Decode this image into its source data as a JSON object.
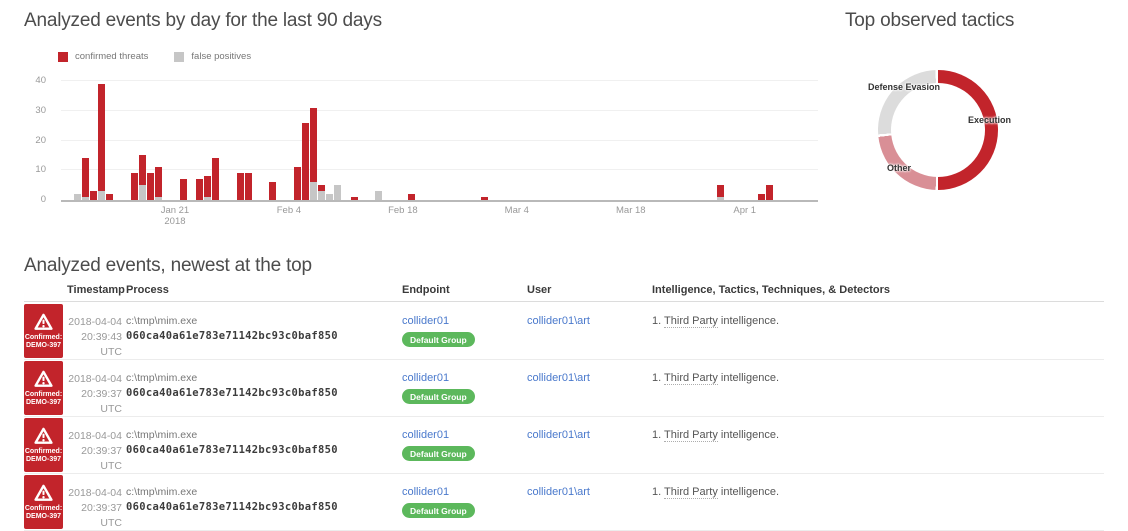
{
  "titles": {
    "bar_chart": "Analyzed events by day for the last 90 days",
    "donut": "Top observed tactics",
    "table": "Analyzed events, newest at the top"
  },
  "chart_data": [
    {
      "type": "bar",
      "title": "Analyzed events by day for the last 90 days",
      "stacked": true,
      "grid": true,
      "legend_position": "top-left",
      "ylim": [
        0,
        40
      ],
      "yticks": [
        0,
        10,
        20,
        30,
        40
      ],
      "x_days_total": 93,
      "xticks": [
        {
          "label": "Jan 21",
          "sublabel": "2018",
          "day": 14
        },
        {
          "label": "Feb 4",
          "day": 28
        },
        {
          "label": "Feb 18",
          "day": 42
        },
        {
          "label": "Mar 4",
          "day": 56
        },
        {
          "label": "Mar 18",
          "day": 70
        },
        {
          "label": "Apr 1",
          "day": 84
        }
      ],
      "series": [
        {
          "name": "confirmed threats",
          "color": "#c2242b"
        },
        {
          "name": "false positives",
          "color": "#c6c6c6"
        }
      ],
      "points": [
        {
          "date": "Jan 9",
          "day": 2,
          "confirmed": 0,
          "false_positives": 2
        },
        {
          "date": "Jan 10",
          "day": 3,
          "confirmed": 13,
          "false_positives": 1
        },
        {
          "date": "Jan 11",
          "day": 4,
          "confirmed": 3,
          "false_positives": 0
        },
        {
          "date": "Jan 12",
          "day": 5,
          "confirmed": 36,
          "false_positives": 3
        },
        {
          "date": "Jan 13",
          "day": 6,
          "confirmed": 2,
          "false_positives": 0
        },
        {
          "date": "Jan 16",
          "day": 9,
          "confirmed": 9,
          "false_positives": 0
        },
        {
          "date": "Jan 17",
          "day": 10,
          "confirmed": 10,
          "false_positives": 5
        },
        {
          "date": "Jan 18",
          "day": 11,
          "confirmed": 9,
          "false_positives": 0
        },
        {
          "date": "Jan 19",
          "day": 12,
          "confirmed": 10,
          "false_positives": 1
        },
        {
          "date": "Jan 22",
          "day": 15,
          "confirmed": 7,
          "false_positives": 0
        },
        {
          "date": "Jan 24",
          "day": 17,
          "confirmed": 7,
          "false_positives": 0
        },
        {
          "date": "Jan 25",
          "day": 18,
          "confirmed": 7,
          "false_positives": 1
        },
        {
          "date": "Jan 26",
          "day": 19,
          "confirmed": 14,
          "false_positives": 0
        },
        {
          "date": "Jan 29",
          "day": 22,
          "confirmed": 9,
          "false_positives": 0
        },
        {
          "date": "Jan 30",
          "day": 23,
          "confirmed": 9,
          "false_positives": 0
        },
        {
          "date": "Feb 2",
          "day": 26,
          "confirmed": 6,
          "false_positives": 0
        },
        {
          "date": "Feb 5",
          "day": 29,
          "confirmed": 11,
          "false_positives": 0
        },
        {
          "date": "Feb 6",
          "day": 30,
          "confirmed": 26,
          "false_positives": 0
        },
        {
          "date": "Feb 7",
          "day": 31,
          "confirmed": 25,
          "false_positives": 6
        },
        {
          "date": "Feb 8",
          "day": 32,
          "confirmed": 2,
          "false_positives": 3
        },
        {
          "date": "Feb 9",
          "day": 33,
          "confirmed": 0,
          "false_positives": 2
        },
        {
          "date": "Feb 10",
          "day": 34,
          "confirmed": 0,
          "false_positives": 5
        },
        {
          "date": "Feb 12",
          "day": 36,
          "confirmed": 1,
          "false_positives": 0
        },
        {
          "date": "Feb 15",
          "day": 39,
          "confirmed": 0,
          "false_positives": 3
        },
        {
          "date": "Feb 19",
          "day": 43,
          "confirmed": 2,
          "false_positives": 0
        },
        {
          "date": "Feb 28",
          "day": 52,
          "confirmed": 1,
          "false_positives": 0
        },
        {
          "date": "Mar 29",
          "day": 81,
          "confirmed": 4,
          "false_positives": 1
        },
        {
          "date": "Apr 3",
          "day": 86,
          "confirmed": 2,
          "false_positives": 0
        },
        {
          "date": "Apr 4",
          "day": 87,
          "confirmed": 5,
          "false_positives": 0
        }
      ]
    },
    {
      "type": "pie",
      "title": "Top observed tactics",
      "donut": true,
      "legend_position": "none",
      "segments": [
        {
          "label": "Execution",
          "value": 51,
          "color": "#c2242b"
        },
        {
          "label": "Other",
          "value": 23,
          "color": "#d98f96"
        },
        {
          "label": "Defense Evasion",
          "value": 26,
          "color": "#dcdcdc"
        }
      ]
    }
  ],
  "table": {
    "title": "Analyzed events, newest at the top",
    "columns": [
      "Timestamp",
      "Process",
      "Endpoint",
      "User",
      "Intelligence, Tactics, Techniques, & Detectors"
    ],
    "rows": [
      {
        "badge_top": "Confirmed:",
        "badge_id": "DEMO-397",
        "date": "2018-04-04",
        "time": "20:39:43 UTC",
        "process_path": "c:\\tmp\\mim.exe",
        "process_hash": "060ca40a61e783e71142bc93c0baf850",
        "endpoint": "collider01",
        "endpoint_group": "Default Group",
        "user": "collider01\\art",
        "intel_num": "1.",
        "intel_link": "Third Party",
        "intel_rest": " intelligence."
      },
      {
        "badge_top": "Confirmed:",
        "badge_id": "DEMO-397",
        "date": "2018-04-04",
        "time": "20:39:37 UTC",
        "process_path": "c:\\tmp\\mim.exe",
        "process_hash": "060ca40a61e783e71142bc93c0baf850",
        "endpoint": "collider01",
        "endpoint_group": "Default Group",
        "user": "collider01\\art",
        "intel_num": "1.",
        "intel_link": "Third Party",
        "intel_rest": " intelligence."
      },
      {
        "badge_top": "Confirmed:",
        "badge_id": "DEMO-397",
        "date": "2018-04-04",
        "time": "20:39:37 UTC",
        "process_path": "c:\\tmp\\mim.exe",
        "process_hash": "060ca40a61e783e71142bc93c0baf850",
        "endpoint": "collider01",
        "endpoint_group": "Default Group",
        "user": "collider01\\art",
        "intel_num": "1.",
        "intel_link": "Third Party",
        "intel_rest": " intelligence."
      },
      {
        "badge_top": "Confirmed:",
        "badge_id": "DEMO-397",
        "date": "2018-04-04",
        "time": "20:39:37 UTC",
        "process_path": "c:\\tmp\\mim.exe",
        "process_hash": "060ca40a61e783e71142bc93c0baf850",
        "endpoint": "collider01",
        "endpoint_group": "Default Group",
        "user": "collider01\\art",
        "intel_num": "1.",
        "intel_link": "Third Party",
        "intel_rest": " intelligence."
      }
    ]
  }
}
